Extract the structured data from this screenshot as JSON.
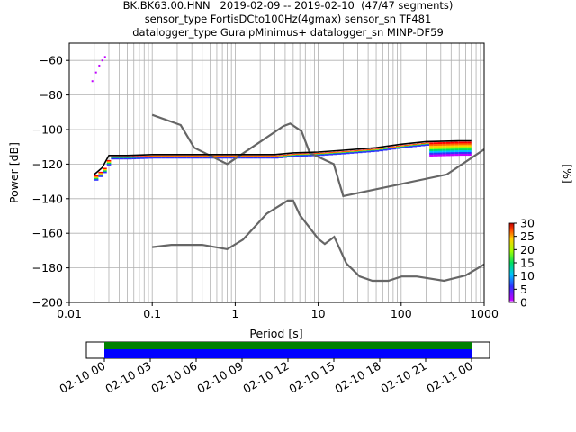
{
  "title": {
    "line1": "BK.BK63.00.HNN   2019-02-09 -- 2019-02-10  (47/47 segments)",
    "line2": "sensor_type FortisDCto100Hz(4gmax) sensor_sn TF481",
    "line3": "datalogger_type GuralpMinimus+ datalogger_sn MINP-DF59"
  },
  "colorbar": {
    "label": "[%]",
    "ticks": [
      "0",
      "5",
      "10",
      "15",
      "20",
      "25",
      "30"
    ],
    "min": 0,
    "max": 30
  },
  "colors": {
    "grid": "#b0b0b0",
    "noise_model": "#666666",
    "mode": "#000000",
    "coverage_green": "#008000",
    "coverage_blue": "#0000ff"
  },
  "chart_data": [
    {
      "type": "heatmap",
      "name_hint": "ppsd",
      "xlabel": "Period [s]",
      "ylabel": "Power [dB]",
      "xscale": "log",
      "xlim": [
        0.01,
        1000
      ],
      "ylim": [
        -200,
        -50
      ],
      "x_ticks": [
        0.01,
        0.1,
        1,
        10,
        100,
        1000
      ],
      "x_tick_labels": [
        "0.01",
        "0.1",
        "1",
        "10",
        "100",
        "1000"
      ],
      "y_ticks": [
        -200,
        -180,
        -160,
        -140,
        -120,
        -100,
        -80,
        -60
      ],
      "y_tick_labels": [
        "−200",
        "−180",
        "−160",
        "−140",
        "−120",
        "−100",
        "−80",
        "−60"
      ],
      "grid": true,
      "mode_curve": {
        "x": [
          0.02,
          0.025,
          0.03,
          0.05,
          0.1,
          0.3,
          1,
          3,
          5,
          10,
          20,
          50,
          100,
          200,
          500,
          700
        ],
        "y": [
          -126,
          -122,
          -115,
          -115,
          -114.5,
          -114.5,
          -114.5,
          -114.5,
          -113.5,
          -113,
          -112,
          -110.5,
          -108.5,
          -107,
          -106.5,
          -106.5
        ]
      },
      "noise_model_high": {
        "x": [
          0.1,
          0.22,
          0.32,
          0.8,
          3.8,
          4.6,
          6.3,
          7.9,
          15.4,
          20,
          354.8,
          1000
        ],
        "y": [
          -91.5,
          -97.4,
          -110.5,
          -120,
          -98,
          -96.5,
          -101,
          -113.5,
          -120,
          -138.5,
          -126,
          -111.5
        ]
      },
      "noise_model_low": {
        "x": [
          0.1,
          0.17,
          0.4,
          0.8,
          1.24,
          2.4,
          4.3,
          5,
          6,
          10,
          12,
          15.6,
          21.9,
          31.6,
          45,
          70,
          101,
          154,
          328,
          600,
          1000
        ],
        "y": [
          -168,
          -166.7,
          -166.7,
          -169.2,
          -163.7,
          -148.6,
          -141.1,
          -141.1,
          -149.4,
          -163.2,
          -166.2,
          -162.1,
          -177.5,
          -185,
          -187.5,
          -187.5,
          -185,
          -185,
          -187.5,
          -184.4,
          -178
        ]
      },
      "high_power_tail": {
        "x": [
          0.019,
          0.021,
          0.023,
          0.025,
          0.027
        ],
        "y": [
          -72,
          -67,
          -63,
          -60,
          -58
        ]
      }
    },
    {
      "type": "bar",
      "name_hint": "data_coverage",
      "x_tick_labels": [
        "02-10 00",
        "02-10 03",
        "02-10 06",
        "02-10 09",
        "02-10 12",
        "02-10 15",
        "02-10 18",
        "02-10 21",
        "02-11 00"
      ],
      "x_ticks_hours": [
        0,
        3,
        6,
        9,
        12,
        15,
        18,
        21,
        24
      ],
      "coverage_hours": [
        0,
        24
      ]
    }
  ]
}
